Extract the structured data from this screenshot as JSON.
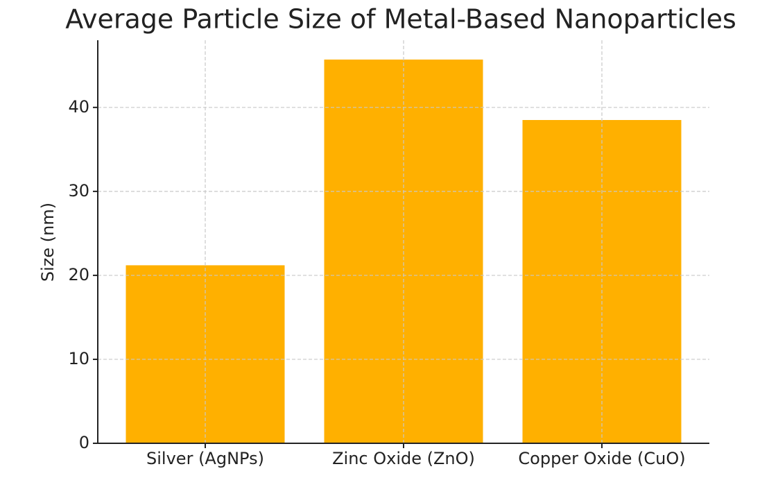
{
  "chart_data": {
    "type": "bar",
    "title": "Average Particle Size of Metal-Based Nanoparticles",
    "ylabel": "Size (nm)",
    "categories": [
      "Silver (AgNPs)",
      "Zinc Oxide (ZnO)",
      "Copper Oxide (CuO)"
    ],
    "values": [
      21.2,
      45.7,
      38.5
    ],
    "color": "#ffb000",
    "ylim": [
      0,
      48
    ],
    "yticks": [
      0,
      10,
      20,
      30,
      40
    ],
    "grid": true
  }
}
